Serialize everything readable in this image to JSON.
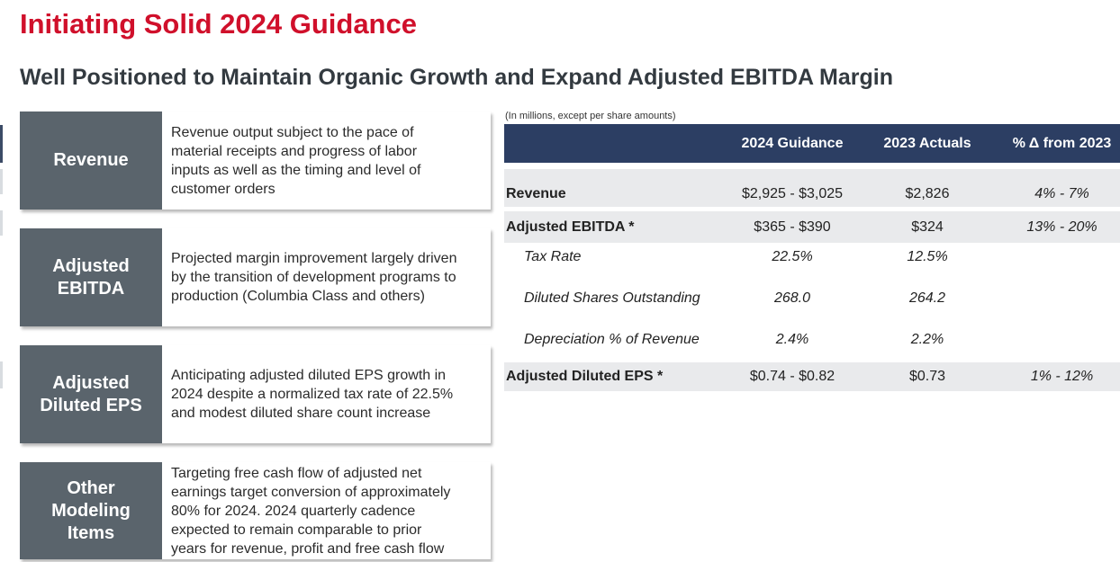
{
  "title": "Initiating Solid 2024 Guidance",
  "subtitle": "Well Positioned to Maintain Organic Growth and Expand Adjusted EBITDA Margin",
  "cards": [
    {
      "label": "Revenue",
      "text": "Revenue output subject to the pace of\nmaterial receipts and progress of labor\ninputs as well as the timing and level of\ncustomer orders"
    },
    {
      "label": "Adjusted\nEBITDA",
      "text": "Projected margin improvement largely driven\nby the transition of development programs to\nproduction (Columbia Class and others)"
    },
    {
      "label": "Adjusted\nDiluted EPS",
      "text": "Anticipating adjusted diluted EPS growth in\n2024 despite a normalized tax rate of 22.5%\nand modest diluted share count increase"
    },
    {
      "label": "Other\nModeling\nItems",
      "text": "Targeting free cash flow of adjusted net\nearnings target conversion of approximately\n80% for 2024. 2024 quarterly cadence\nexpected to remain comparable to prior\nyears for revenue, profit and free cash flow"
    }
  ],
  "table": {
    "note": "(In millions, except per share amounts)",
    "headers": [
      "",
      "2024 Guidance",
      "2023 Actuals",
      "% Δ from 2023"
    ],
    "rows": [
      {
        "label": "Revenue",
        "guidance": "$2,925 - $3,025",
        "actual": "$2,826",
        "change": "4% - 7%"
      },
      {
        "label": "Adjusted EBITDA *",
        "guidance": "$365 - $390",
        "actual": "$324",
        "change": "13% - 20%"
      },
      {
        "label": "Tax Rate",
        "guidance": "22.5%",
        "actual": "12.5%",
        "change": ""
      },
      {
        "label": "Diluted Shares Outstanding",
        "guidance": "268.0",
        "actual": "264.2",
        "change": ""
      },
      {
        "label": "Depreciation % of Revenue",
        "guidance": "2.4%",
        "actual": "2.2%",
        "change": ""
      },
      {
        "label": "Adjusted Diluted EPS *",
        "guidance": "$0.74 - $0.82",
        "actual": "$0.73",
        "change": "1% - 12%"
      }
    ]
  },
  "colors": {
    "title": "#d0102b",
    "card_label_bg": "#5a646c",
    "table_header_bg": "#2c3e63",
    "row_shade": "#e9eaec"
  }
}
